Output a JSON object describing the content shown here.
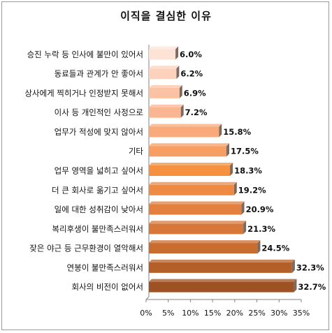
{
  "chart_data": {
    "type": "bar",
    "orientation": "horizontal",
    "title": "이직을 결심한 이유",
    "categories": [
      "승진 누락 등 인사에 불만이 있어서",
      "동료들과 관계가 안 좋아서",
      "상사에게 찍히거나 인정받지 못해서",
      "이사 등 개인적인 사정으로",
      "업무가 적성에 맞지 않아서",
      "기타",
      "업무 영역을 넓히고 싶어서",
      "더 큰 회사로 옮기고 싶어서",
      "일에 대한 성취감이 낮아서",
      "복리후생이 불만족스러워서",
      "잦은 야근 등 근무환경이 열악해서",
      "연봉이 불만족스러워서",
      "회사의 비전이 없어서"
    ],
    "values": [
      6.0,
      6.2,
      6.9,
      7.2,
      15.8,
      17.5,
      18.3,
      19.2,
      20.9,
      21.3,
      24.5,
      32.3,
      32.7
    ],
    "value_labels": [
      "6.0%",
      "6.2%",
      "6.9%",
      "7.2%",
      "15.8%",
      "17.5%",
      "18.3%",
      "19.2%",
      "20.9%",
      "21.3%",
      "24.5%",
      "32.3%",
      "32.7%"
    ],
    "xlim": [
      0,
      35
    ],
    "x_ticks": [
      "0%",
      "5%",
      "10%",
      "15%",
      "20%",
      "25%",
      "30%",
      "35%"
    ],
    "grid": false,
    "legend": "none",
    "colors": {
      "bar_front": [
        "#fde3d6",
        "#fcd2bd",
        "#fbc3a4",
        "#fab692",
        "#f8aa7a",
        "#f79e62",
        "#f6923f",
        "#ee8a44",
        "#e38040",
        "#d8773a",
        "#c86c30",
        "#b55f28",
        "#9e5224"
      ],
      "bar_side": "#7a6a60",
      "axis": "#808080"
    }
  }
}
